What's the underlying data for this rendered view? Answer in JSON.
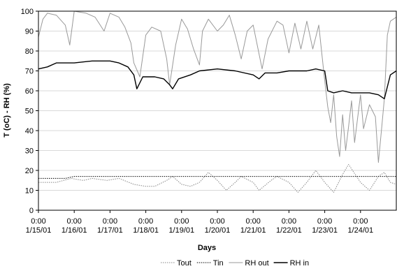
{
  "chart_data": {
    "type": "line",
    "xlabel": "Days",
    "ylabel": "T (oC) - RH (%)",
    "ylim": [
      0,
      100
    ],
    "yticks": [
      "0",
      "10",
      "20",
      "30",
      "40",
      "50",
      "60",
      "70",
      "80",
      "90",
      "100"
    ],
    "xlim": [
      "1/15/01 0:00",
      "1/25/01 0:00"
    ],
    "xticks": [
      {
        "time": "0:00",
        "date": "1/15/01"
      },
      {
        "time": "0:00",
        "date": "1/16/01"
      },
      {
        "time": "0:00",
        "date": "1/17/01"
      },
      {
        "time": "0:00",
        "date": "1/18/01"
      },
      {
        "time": "0:00",
        "date": "1/19/01"
      },
      {
        "time": "0:00",
        "date": "1/20/01"
      },
      {
        "time": "0:00",
        "date": "1/21/01"
      },
      {
        "time": "0:00",
        "date": "1/22/01"
      },
      {
        "time": "0:00",
        "date": "1/23/01"
      },
      {
        "time": "0:00",
        "date": "1/24/01"
      }
    ],
    "grid": true,
    "legend_position": "bottom",
    "series": [
      {
        "name": "Tout",
        "color": "#888888",
        "style": "dotted",
        "points": [
          [
            "1/15/01 0:00",
            14
          ],
          [
            "1/15/01 12:00",
            14
          ],
          [
            "1/15/01 22:00",
            16
          ],
          [
            "1/16/01 6:00",
            15
          ],
          [
            "1/16/01 12:00",
            16
          ],
          [
            "1/16/01 22:00",
            15
          ],
          [
            "1/17/01 6:00",
            16
          ],
          [
            "1/17/01 16:00",
            13
          ],
          [
            "1/18/01 0:00",
            12
          ],
          [
            "1/18/01 6:00",
            12
          ],
          [
            "1/18/01 14:00",
            15
          ],
          [
            "1/18/01 18:00",
            17
          ],
          [
            "1/19/01 0:00",
            13
          ],
          [
            "1/19/01 6:00",
            12
          ],
          [
            "1/19/01 12:00",
            14
          ],
          [
            "1/19/01 18:00",
            19
          ],
          [
            "1/20/01 0:00",
            15
          ],
          [
            "1/20/01 6:00",
            10
          ],
          [
            "1/20/01 12:00",
            14
          ],
          [
            "1/20/01 16:00",
            17
          ],
          [
            "1/21/01 0:00",
            14
          ],
          [
            "1/21/01 4:00",
            10
          ],
          [
            "1/21/01 12:00",
            15
          ],
          [
            "1/21/01 16:00",
            17
          ],
          [
            "1/22/01 0:00",
            14
          ],
          [
            "1/22/01 6:00",
            9
          ],
          [
            "1/22/01 12:00",
            14
          ],
          [
            "1/22/01 18:00",
            20
          ],
          [
            "1/23/01 0:00",
            14
          ],
          [
            "1/23/01 6:00",
            9
          ],
          [
            "1/23/01 12:00",
            18
          ],
          [
            "1/23/01 16:00",
            23
          ],
          [
            "1/24/01 0:00",
            14
          ],
          [
            "1/24/01 6:00",
            10
          ],
          [
            "1/24/01 12:00",
            17
          ],
          [
            "1/24/01 16:00",
            19
          ],
          [
            "1/24/01 20:00",
            14
          ],
          [
            "1/25/01 0:00",
            13
          ]
        ]
      },
      {
        "name": "Tin",
        "color": "#000000",
        "style": "dotted",
        "points": [
          [
            "1/15/01 0:00",
            16
          ],
          [
            "1/15/01 18:00",
            16
          ],
          [
            "1/16/01 0:00",
            17
          ],
          [
            "1/16/01 12:00",
            17
          ],
          [
            "1/17/01 0:00",
            17
          ],
          [
            "1/17/01 12:00",
            17
          ],
          [
            "1/18/01 0:00",
            17
          ],
          [
            "1/19/01 0:00",
            17
          ],
          [
            "1/20/01 0:00",
            17
          ],
          [
            "1/21/01 0:00",
            17
          ],
          [
            "1/22/01 0:00",
            17
          ],
          [
            "1/23/01 0:00",
            17
          ],
          [
            "1/24/01 0:00",
            17
          ],
          [
            "1/25/01 0:00",
            17
          ]
        ]
      },
      {
        "name": "RH out",
        "color": "#999999",
        "style": "solid",
        "points": [
          [
            "1/15/01 0:00",
            87
          ],
          [
            "1/15/01 3:00",
            96
          ],
          [
            "1/15/01 6:00",
            99
          ],
          [
            "1/15/01 12:00",
            98
          ],
          [
            "1/15/01 18:00",
            93
          ],
          [
            "1/15/01 21:00",
            83
          ],
          [
            "1/16/01 0:00",
            100
          ],
          [
            "1/16/01 8:00",
            99
          ],
          [
            "1/16/01 14:00",
            97
          ],
          [
            "1/16/01 20:00",
            90
          ],
          [
            "1/17/01 0:00",
            99
          ],
          [
            "1/17/01 6:00",
            97
          ],
          [
            "1/17/01 10:00",
            92
          ],
          [
            "1/17/01 14:00",
            84
          ],
          [
            "1/17/01 16:00",
            74
          ],
          [
            "1/17/01 20:00",
            67
          ],
          [
            "1/18/01 0:00",
            88
          ],
          [
            "1/18/01 4:00",
            92
          ],
          [
            "1/18/01 10:00",
            90
          ],
          [
            "1/18/01 14:00",
            76
          ],
          [
            "1/18/01 16:00",
            63
          ],
          [
            "1/18/01 20:00",
            83
          ],
          [
            "1/19/01 0:00",
            96
          ],
          [
            "1/19/01 4:00",
            91
          ],
          [
            "1/19/01 8:00",
            81
          ],
          [
            "1/19/01 12:00",
            73
          ],
          [
            "1/19/01 14:00",
            90
          ],
          [
            "1/19/01 18:00",
            96
          ],
          [
            "1/20/01 0:00",
            90
          ],
          [
            "1/20/01 4:00",
            93
          ],
          [
            "1/20/01 8:00",
            98
          ],
          [
            "1/20/01 12:00",
            88
          ],
          [
            "1/20/01 16:00",
            76
          ],
          [
            "1/20/01 20:00",
            90
          ],
          [
            "1/21/01 0:00",
            93
          ],
          [
            "1/21/01 6:00",
            71
          ],
          [
            "1/21/01 10:00",
            86
          ],
          [
            "1/21/01 16:00",
            95
          ],
          [
            "1/21/01 20:00",
            93
          ],
          [
            "1/22/01 0:00",
            79
          ],
          [
            "1/22/01 4:00",
            94
          ],
          [
            "1/22/01 8:00",
            81
          ],
          [
            "1/22/01 12:00",
            95
          ],
          [
            "1/22/01 16:00",
            81
          ],
          [
            "1/22/01 20:00",
            93
          ],
          [
            "1/23/01 0:00",
            65
          ],
          [
            "1/23/01 2:00",
            52
          ],
          [
            "1/23/01 4:00",
            44
          ],
          [
            "1/23/01 6:00",
            58
          ],
          [
            "1/23/01 8:00",
            37
          ],
          [
            "1/23/01 10:00",
            27
          ],
          [
            "1/23/01 12:00",
            48
          ],
          [
            "1/23/01 14:00",
            30
          ],
          [
            "1/23/01 16:00",
            42
          ],
          [
            "1/23/01 18:00",
            55
          ],
          [
            "1/23/01 20:00",
            34
          ],
          [
            "1/24/01 0:00",
            58
          ],
          [
            "1/24/01 2:00",
            41
          ],
          [
            "1/24/01 6:00",
            53
          ],
          [
            "1/24/01 10:00",
            47
          ],
          [
            "1/24/01 12:00",
            24
          ],
          [
            "1/24/01 14:00",
            40
          ],
          [
            "1/24/01 16:00",
            56
          ],
          [
            "1/24/01 18:00",
            88
          ],
          [
            "1/24/01 20:00",
            95
          ],
          [
            "1/25/01 0:00",
            97
          ]
        ]
      },
      {
        "name": "RH in",
        "color": "#000000",
        "style": "solid",
        "points": [
          [
            "1/15/01 0:00",
            71
          ],
          [
            "1/15/01 6:00",
            72
          ],
          [
            "1/15/01 12:00",
            74
          ],
          [
            "1/15/01 18:00",
            74
          ],
          [
            "1/16/01 0:00",
            74
          ],
          [
            "1/16/01 12:00",
            75
          ],
          [
            "1/17/01 0:00",
            75
          ],
          [
            "1/17/01 6:00",
            74
          ],
          [
            "1/17/01 12:00",
            72
          ],
          [
            "1/17/01 16:00",
            68
          ],
          [
            "1/17/01 18:00",
            61
          ],
          [
            "1/17/01 22:00",
            67
          ],
          [
            "1/18/01 6:00",
            67
          ],
          [
            "1/18/01 12:00",
            66
          ],
          [
            "1/18/01 16:00",
            63
          ],
          [
            "1/18/01 18:00",
            61
          ],
          [
            "1/18/01 22:00",
            66
          ],
          [
            "1/19/01 6:00",
            68
          ],
          [
            "1/19/01 12:00",
            70
          ],
          [
            "1/20/01 0:00",
            71
          ],
          [
            "1/20/01 12:00",
            70
          ],
          [
            "1/21/01 0:00",
            68
          ],
          [
            "1/21/01 4:00",
            66
          ],
          [
            "1/21/01 8:00",
            69
          ],
          [
            "1/21/01 16:00",
            69
          ],
          [
            "1/22/01 0:00",
            70
          ],
          [
            "1/22/01 6:00",
            70
          ],
          [
            "1/22/01 12:00",
            70
          ],
          [
            "1/22/01 18:00",
            71
          ],
          [
            "1/23/01 0:00",
            70
          ],
          [
            "1/23/01 2:00",
            60
          ],
          [
            "1/23/01 6:00",
            59
          ],
          [
            "1/23/01 12:00",
            60
          ],
          [
            "1/23/01 18:00",
            59
          ],
          [
            "1/24/01 0:00",
            59
          ],
          [
            "1/24/01 6:00",
            59
          ],
          [
            "1/24/01 12:00",
            58
          ],
          [
            "1/24/01 16:00",
            56
          ],
          [
            "1/24/01 18:00",
            62
          ],
          [
            "1/24/01 20:00",
            68
          ],
          [
            "1/25/01 0:00",
            70
          ]
        ]
      }
    ]
  }
}
